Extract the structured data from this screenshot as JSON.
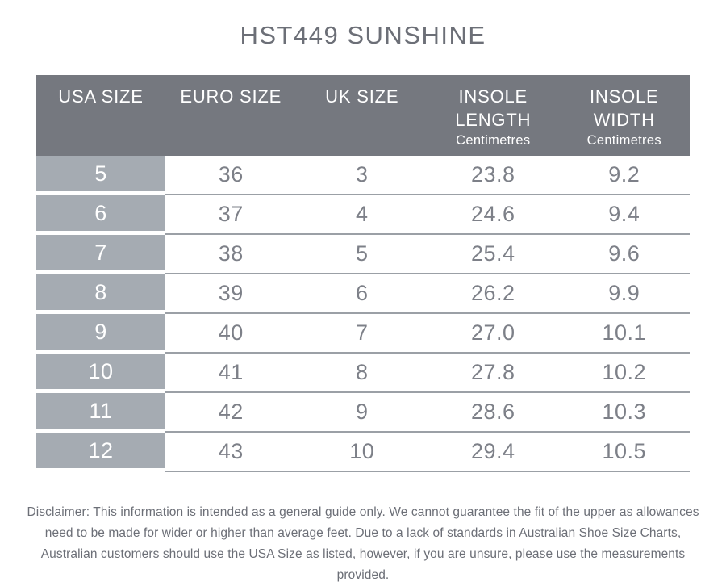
{
  "page": {
    "title": "HST449 SUNSHINE"
  },
  "colors": {
    "header_bg": "#75787F",
    "usa_cell_bg": "#A5ABB2",
    "body_text": "#7D8088",
    "title_text": "#6C6F77",
    "separator_line": "#9BA0A6",
    "header_text": "#FFFFFF"
  },
  "table": {
    "headers": [
      {
        "label": "USA SIZE",
        "sub": ""
      },
      {
        "label": "EURO SIZE",
        "sub": ""
      },
      {
        "label": "UK SIZE",
        "sub": ""
      },
      {
        "label": "INSOLE LENGTH",
        "sub": "Centimetres"
      },
      {
        "label": "INSOLE WIDTH",
        "sub": "Centimetres"
      }
    ],
    "rows": [
      [
        "5",
        "36",
        "3",
        "23.8",
        "9.2"
      ],
      [
        "6",
        "37",
        "4",
        "24.6",
        "9.4"
      ],
      [
        "7",
        "38",
        "5",
        "25.4",
        "9.6"
      ],
      [
        "8",
        "39",
        "6",
        "26.2",
        "9.9"
      ],
      [
        "9",
        "40",
        "7",
        "27.0",
        "10.1"
      ],
      [
        "10",
        "41",
        "8",
        "27.8",
        "10.2"
      ],
      [
        "11",
        "42",
        "9",
        "28.6",
        "10.3"
      ],
      [
        "12",
        "43",
        "10",
        "29.4",
        "10.5"
      ]
    ]
  },
  "disclaimer": "Disclaimer: This information is intended as a general guide only. We cannot guarantee the fit of the upper as allowances need to be made for wider or higher than average feet. Due to a lack of standards in Australian Shoe Size Charts, Australian customers should use the USA Size as listed, however, if you are unsure, please use the measurements provided.",
  "chart_data": {
    "type": "table",
    "title": "HST449 SUNSHINE",
    "columns": [
      "USA SIZE",
      "EURO SIZE",
      "UK SIZE",
      "INSOLE LENGTH Centimetres",
      "INSOLE WIDTH Centimetres"
    ],
    "rows": [
      [
        5,
        36,
        3,
        23.8,
        9.2
      ],
      [
        6,
        37,
        4,
        24.6,
        9.4
      ],
      [
        7,
        38,
        5,
        25.4,
        9.6
      ],
      [
        8,
        39,
        6,
        26.2,
        9.9
      ],
      [
        9,
        40,
        7,
        27.0,
        10.1
      ],
      [
        10,
        41,
        8,
        27.8,
        10.2
      ],
      [
        11,
        42,
        9,
        28.6,
        10.3
      ],
      [
        12,
        43,
        10,
        29.4,
        10.5
      ]
    ]
  }
}
